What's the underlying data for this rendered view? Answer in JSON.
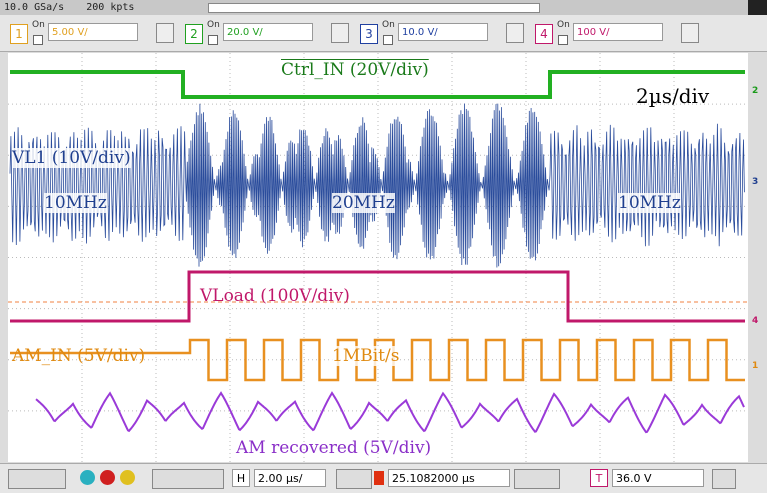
{
  "status": {
    "sample_rate": "10.0 GSa/s",
    "points": "200 kpts"
  },
  "channels": [
    {
      "number": "1",
      "state": "On",
      "scale": "5.00 V/"
    },
    {
      "number": "2",
      "state": "On",
      "scale": "20.0 V/"
    },
    {
      "number": "3",
      "state": "On",
      "scale": "10.0 V/"
    },
    {
      "number": "4",
      "state": "On",
      "scale": "100 V/"
    }
  ],
  "annotations": {
    "ctrl_in": "Ctrl_IN (20V/div)",
    "time_div": "2µs/div",
    "vl1": "VL1 (10V/div)",
    "vl1_freq_left": "10MHz",
    "vl1_freq_mid": "20MHz",
    "vl1_freq_right": "10MHz",
    "vload": "VLoad (100V/div)",
    "am_in": "AM_IN (5V/div)",
    "bitrate": "1MBit/s",
    "am_recovered": "AM recovered (5V/div)"
  },
  "markers": [
    "2",
    "3",
    "4",
    "1"
  ],
  "bottom_bar": {
    "horizontal_label": "H",
    "horizontal_scale": "2.00 µs/",
    "delay": "25.1082000 µs",
    "trigger_label": "T",
    "trigger_level": "36.0 V"
  }
}
